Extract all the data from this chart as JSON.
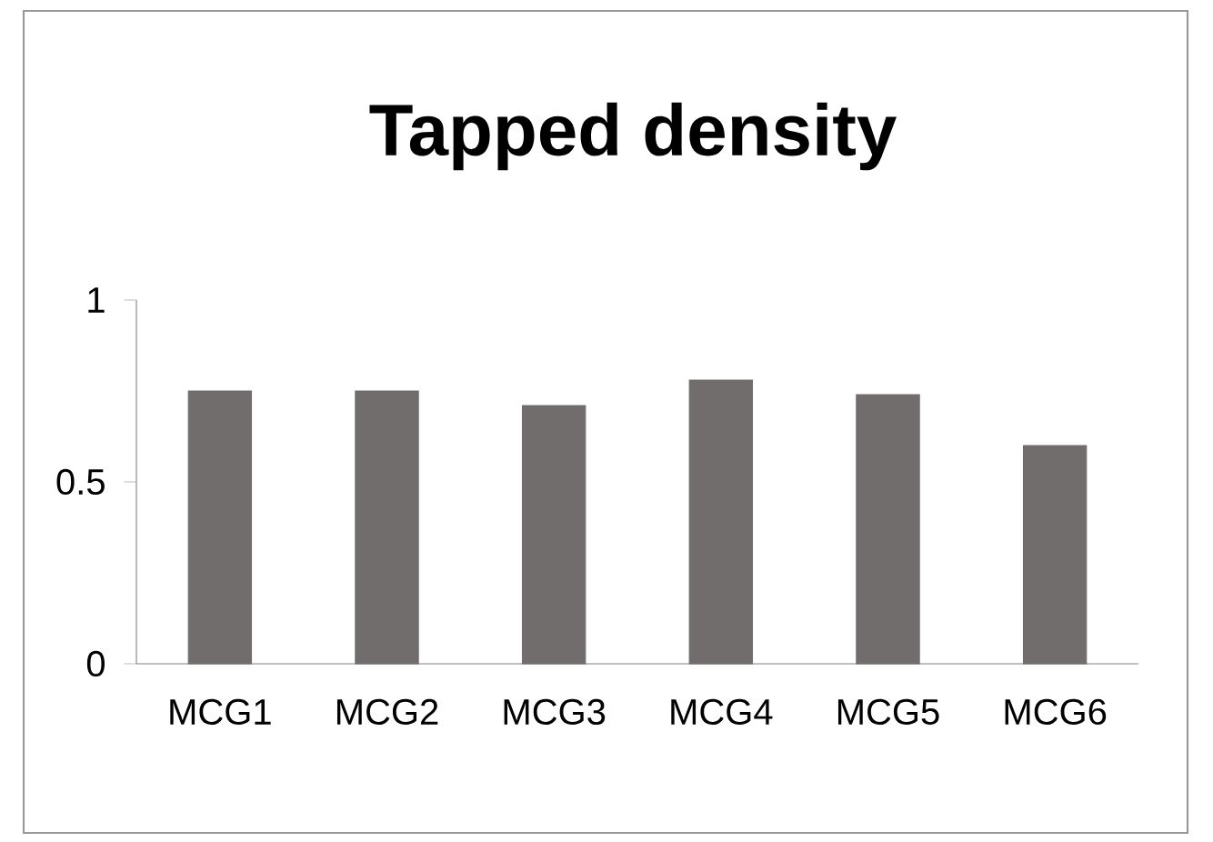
{
  "chart_data": {
    "type": "bar",
    "title": "Tapped density",
    "categories": [
      "MCG1",
      "MCG2",
      "MCG3",
      "MCG4",
      "MCG5",
      "MCG6"
    ],
    "values": [
      0.75,
      0.75,
      0.71,
      0.78,
      0.74,
      0.6
    ],
    "color": "#716d6c",
    "ylim": [
      0,
      1
    ],
    "yticks": [
      0,
      0.5,
      1
    ]
  }
}
